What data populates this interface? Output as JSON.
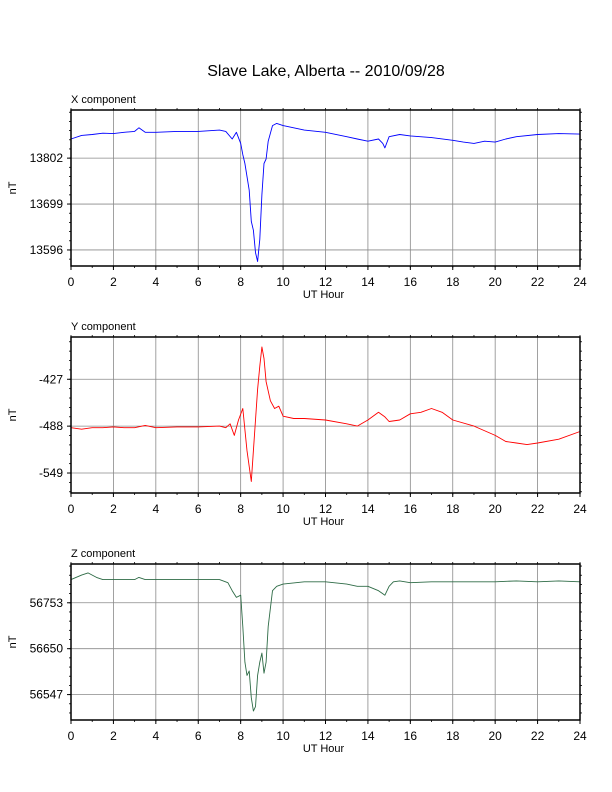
{
  "title": "Slave Lake, Alberta -- 2010/09/28",
  "chart_data": [
    {
      "type": "line",
      "title": "X component",
      "xlabel": "UT Hour",
      "ylabel": "nT",
      "color": "#0000ff",
      "xlim": [
        0,
        24
      ],
      "ylim": [
        13560,
        13910
      ],
      "xticks": [
        "0",
        "2",
        "4",
        "6",
        "8",
        "10",
        "12",
        "14",
        "16",
        "18",
        "20",
        "22",
        "24"
      ],
      "yticks": [
        "13802",
        "13699",
        "13596"
      ],
      "ytick_values": [
        13802,
        13699,
        13596
      ],
      "grid": true,
      "x": [
        0,
        0.5,
        1,
        1.5,
        2,
        2.5,
        3,
        3.2,
        3.5,
        4,
        5,
        6,
        7,
        7.3,
        7.6,
        7.8,
        8,
        8.1,
        8.2,
        8.4,
        8.5,
        8.6,
        8.7,
        8.8,
        8.9,
        9,
        9.1,
        9.2,
        9.3,
        9.5,
        9.7,
        10,
        10.5,
        11,
        12,
        13,
        13.5,
        14,
        14.5,
        14.7,
        14.8,
        15,
        15.5,
        16,
        17,
        18,
        18.5,
        19,
        19.5,
        20,
        20.5,
        21,
        22,
        23,
        24
      ],
      "y": [
        13845,
        13853,
        13855,
        13858,
        13857,
        13860,
        13862,
        13870,
        13860,
        13860,
        13862,
        13862,
        13865,
        13862,
        13845,
        13860,
        13835,
        13810,
        13790,
        13730,
        13660,
        13640,
        13590,
        13570,
        13620,
        13720,
        13790,
        13800,
        13840,
        13875,
        13880,
        13875,
        13870,
        13865,
        13860,
        13850,
        13845,
        13840,
        13845,
        13835,
        13825,
        13850,
        13855,
        13852,
        13848,
        13842,
        13838,
        13835,
        13840,
        13838,
        13845,
        13850,
        13855,
        13857,
        13856
      ]
    },
    {
      "type": "line",
      "title": "Y component",
      "xlabel": "UT Hour",
      "ylabel": "nT",
      "color": "#ff0000",
      "xlim": [
        0,
        24
      ],
      "ylim": [
        -575,
        -372
      ],
      "xticks": [
        "0",
        "2",
        "4",
        "6",
        "8",
        "10",
        "12",
        "14",
        "16",
        "18",
        "20",
        "22",
        "24"
      ],
      "yticks": [
        "-427",
        "-488",
        "-549"
      ],
      "ytick_values": [
        -427,
        -488,
        -549
      ],
      "grid": true,
      "x": [
        0,
        0.5,
        1,
        1.5,
        2,
        2.5,
        3,
        3.5,
        4,
        5,
        6,
        7,
        7.3,
        7.5,
        7.7,
        7.9,
        8.1,
        8.3,
        8.5,
        8.6,
        8.7,
        8.8,
        8.9,
        9,
        9.1,
        9.2,
        9.4,
        9.6,
        9.8,
        10,
        10.5,
        11,
        12,
        13,
        13.5,
        14,
        14.5,
        14.8,
        15,
        15.5,
        16,
        16.5,
        17,
        17.5,
        18,
        19,
        20,
        20.5,
        21,
        21.5,
        22,
        23,
        24
      ],
      "y": [
        -490,
        -492,
        -490,
        -490,
        -489,
        -490,
        -490,
        -487,
        -490,
        -489,
        -489,
        -488,
        -490,
        -485,
        -500,
        -480,
        -465,
        -520,
        -560,
        -520,
        -480,
        -440,
        -410,
        -385,
        -400,
        -430,
        -455,
        -465,
        -462,
        -475,
        -478,
        -478,
        -480,
        -485,
        -488,
        -480,
        -470,
        -476,
        -482,
        -480,
        -472,
        -470,
        -465,
        -470,
        -480,
        -488,
        -500,
        -508,
        -510,
        -512,
        -510,
        -505,
        -495
      ]
    },
    {
      "type": "line",
      "title": "Z component",
      "xlabel": "UT Hour",
      "ylabel": "nT",
      "color": "#2e6b46",
      "xlim": [
        0,
        24
      ],
      "ylim": [
        56490,
        56840
      ],
      "xticks": [
        "0",
        "2",
        "4",
        "6",
        "8",
        "10",
        "12",
        "14",
        "16",
        "18",
        "20",
        "22",
        "24"
      ],
      "yticks": [
        "56753",
        "56650",
        "56547"
      ],
      "ytick_values": [
        56753,
        56650,
        56547
      ],
      "grid": true,
      "x": [
        0,
        0.5,
        0.8,
        1.2,
        1.5,
        2,
        3,
        3.2,
        3.5,
        4,
        5,
        6,
        7,
        7.4,
        7.6,
        7.8,
        8,
        8.1,
        8.2,
        8.3,
        8.4,
        8.5,
        8.6,
        8.7,
        8.8,
        8.9,
        9,
        9.1,
        9.2,
        9.3,
        9.5,
        9.7,
        10,
        11,
        12,
        13,
        13.5,
        14,
        14.5,
        14.8,
        15,
        15.2,
        15.5,
        16,
        17,
        18,
        19,
        20,
        21,
        22,
        23,
        24
      ],
      "y": [
        56805,
        56815,
        56820,
        56810,
        56805,
        56805,
        56805,
        56810,
        56805,
        56805,
        56805,
        56805,
        56805,
        56798,
        56780,
        56765,
        56770,
        56700,
        56620,
        56590,
        56600,
        56540,
        56510,
        56520,
        56590,
        56620,
        56640,
        56595,
        56620,
        56700,
        56780,
        56790,
        56795,
        56800,
        56800,
        56795,
        56790,
        56790,
        56780,
        56770,
        56790,
        56800,
        56802,
        56798,
        56800,
        56800,
        56800,
        56800,
        56802,
        56800,
        56802,
        56800
      ]
    }
  ]
}
